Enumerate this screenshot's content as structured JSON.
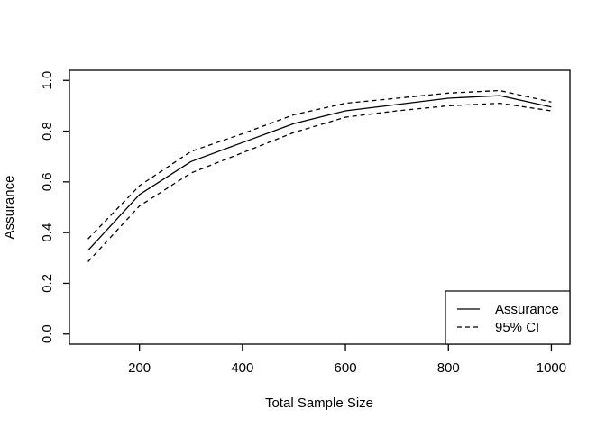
{
  "figure": {
    "background_color": "#ffffff",
    "foreground_color": "#000000"
  },
  "chart_data": {
    "type": "line",
    "title": "",
    "xlabel": "Total Sample Size",
    "ylabel": "Assurance",
    "x": [
      100,
      200,
      300,
      400,
      500,
      600,
      700,
      800,
      900,
      1000
    ],
    "series": [
      {
        "name": "Assurance",
        "style": "solid",
        "values": [
          0.33,
          0.55,
          0.68,
          0.755,
          0.83,
          0.88,
          0.905,
          0.93,
          0.94,
          0.895
        ]
      },
      {
        "name": "95% CI upper",
        "style": "dashed",
        "values": [
          0.375,
          0.585,
          0.72,
          0.79,
          0.865,
          0.91,
          0.93,
          0.95,
          0.96,
          0.915
        ]
      },
      {
        "name": "95% CI lower",
        "style": "dashed",
        "values": [
          0.285,
          0.505,
          0.635,
          0.715,
          0.795,
          0.855,
          0.88,
          0.9,
          0.91,
          0.88
        ]
      }
    ],
    "x_tick_values": [
      200,
      400,
      600,
      800,
      1000
    ],
    "x_tick_labels": [
      "200",
      "400",
      "600",
      "800",
      "1000"
    ],
    "y_tick_values": [
      0.0,
      0.2,
      0.4,
      0.6,
      0.8,
      1.0
    ],
    "y_tick_labels": [
      "0.0",
      "0.2",
      "0.4",
      "0.6",
      "0.8",
      "1.0"
    ],
    "xlim": [
      64,
      1036
    ],
    "ylim": [
      -0.04,
      1.04
    ],
    "grid": false,
    "line_color": "#000000",
    "legend": {
      "position": "bottom-right",
      "entries": [
        {
          "label": "Assurance",
          "style": "solid"
        },
        {
          "label": "95% CI",
          "style": "dashed"
        }
      ]
    }
  }
}
